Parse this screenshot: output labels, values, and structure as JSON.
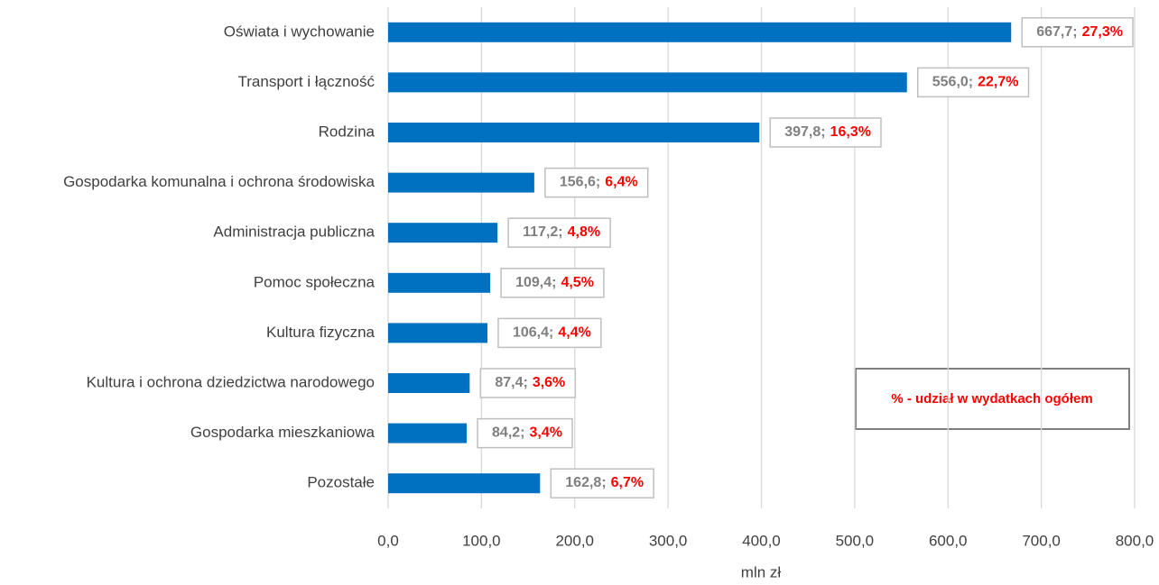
{
  "chart_data": {
    "type": "barh",
    "categories": [
      "Oświata i wychowanie",
      "Transport i łączność",
      "Rodzina",
      "Gospodarka komunalna i ochrona środowiska",
      "Administracja publiczna",
      "Pomoc społeczna",
      "Kultura fizyczna",
      "Kultura i ochrona dziedzictwa narodowego",
      "Gospodarka mieszkaniowa",
      "Pozostałe"
    ],
    "values": [
      667.7,
      556.0,
      397.8,
      156.6,
      117.2,
      109.4,
      106.4,
      87.4,
      84.2,
      162.8
    ],
    "value_labels": [
      "667,7",
      "556,0",
      "397,8",
      "156,6",
      "117,2",
      "109,4",
      "106,4",
      "87,4",
      "84,2",
      "162,8"
    ],
    "label_separator": ";",
    "shares": [
      27.3,
      22.7,
      16.3,
      6.4,
      4.8,
      4.5,
      4.4,
      3.6,
      3.4,
      6.7
    ],
    "share_labels": [
      "27,3%",
      "22,7%",
      "16,3%",
      "6,4%",
      "4,8%",
      "4,5%",
      "4,4%",
      "3,6%",
      "3,4%",
      "6,7%"
    ],
    "color": "#0070c0",
    "xlim": [
      0,
      800
    ],
    "xticks": [
      {
        "value": 0,
        "label": "0,0"
      },
      {
        "value": 100,
        "label": "100,0"
      },
      {
        "value": 200,
        "label": "200,0"
      },
      {
        "value": 300,
        "label": "300,0"
      },
      {
        "value": 400,
        "label": "400,0"
      },
      {
        "value": 500,
        "label": "500,0"
      },
      {
        "value": 600,
        "label": "600,0"
      },
      {
        "value": 700,
        "label": "700,0"
      },
      {
        "value": 800,
        "label": "800,0"
      }
    ],
    "x_label": "mln zł",
    "annotation": "% - udział w wydatkach ogółem",
    "grid": true
  }
}
